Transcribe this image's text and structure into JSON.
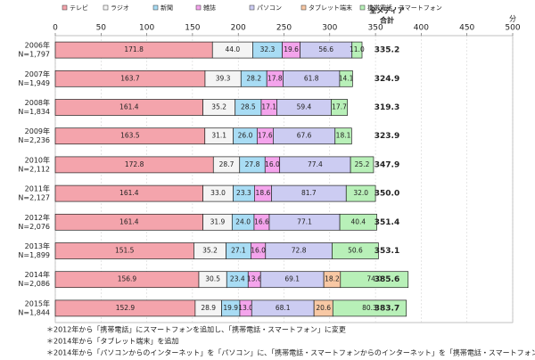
{
  "chart_data": {
    "type": "stacked_bar_horizontal",
    "categories": [
      "2006年",
      "2007年",
      "2008年",
      "2009年",
      "2010年",
      "2011年",
      "2012年",
      "2013年",
      "2014年",
      "2015年"
    ],
    "sample_sizes": [
      "N=1,797",
      "N=1,949",
      "N=1,834",
      "N=2,236",
      "N=2,112",
      "N=2,127",
      "N=2,076",
      "N=1,899",
      "N=2,086",
      "N=1,844"
    ],
    "series": [
      {
        "name": "テレビ",
        "color": "#f4a4ac",
        "values": [
          171.8,
          163.7,
          161.4,
          163.5,
          172.8,
          161.4,
          161.4,
          151.5,
          156.9,
          152.9
        ],
        "value_labels": [
          "171.8",
          "163.7",
          "161.4",
          "163.5",
          "172.8",
          "161.4",
          "161.4",
          "151.5",
          "156.9",
          "152.9"
        ]
      },
      {
        "name": "ラジオ",
        "color": "#f4f4f4",
        "values": [
          44.0,
          39.3,
          35.2,
          31.1,
          28.7,
          33.0,
          31.9,
          35.2,
          30.5,
          28.9
        ],
        "value_labels": [
          "44.0",
          "39.3",
          "35.2",
          "31.1",
          "28.7",
          "33.0",
          "31.9",
          "35.2",
          "30.5",
          "28.9"
        ]
      },
      {
        "name": "新聞",
        "color": "#a8dcf4",
        "values": [
          32.3,
          28.2,
          28.5,
          26.0,
          27.8,
          23.3,
          24.0,
          27.1,
          23.4,
          19.9
        ],
        "value_labels": [
          "32.3",
          "28.2",
          "28.5",
          "26.0",
          "27.8",
          "23.3",
          "24.0",
          "27.1",
          "23.4",
          "19.9"
        ]
      },
      {
        "name": "雑誌",
        "color": "#f4a4ec",
        "values": [
          19.6,
          17.8,
          17.1,
          17.6,
          16.0,
          18.6,
          16.6,
          16.0,
          13.6,
          13.0
        ],
        "value_labels": [
          "19.6",
          "17.8",
          "17.1",
          "17.6",
          "16.0",
          "18.6",
          "16.6",
          "16.0",
          "13.6",
          "13.0"
        ]
      },
      {
        "name": "パソコン",
        "color": "#ccccf2",
        "values": [
          56.6,
          61.8,
          59.4,
          67.6,
          77.4,
          81.7,
          77.1,
          72.8,
          69.1,
          68.1
        ],
        "value_labels": [
          "56.6",
          "61.8",
          "59.4",
          "67.6",
          "77.4",
          "81.7",
          "77.1",
          "72.8",
          "69.1",
          "68.1"
        ]
      },
      {
        "name": "タブレット端末",
        "color": "#f8c8a4",
        "values": [
          null,
          null,
          null,
          null,
          null,
          null,
          null,
          null,
          18.2,
          20.6
        ],
        "value_labels": [
          null,
          null,
          null,
          null,
          null,
          null,
          null,
          null,
          "18.2",
          "20.6"
        ]
      },
      {
        "name": "携帯電話・スマートフォン",
        "color": "#b8f0b8",
        "values": [
          11.0,
          14.1,
          17.7,
          18.1,
          25.2,
          32.0,
          40.4,
          50.6,
          74.0,
          80.3
        ],
        "value_labels": [
          "11.0",
          "14.1",
          "17.7",
          "18.1",
          "25.2",
          "32.0",
          "40.4",
          "50.6",
          "74.0",
          "80.3"
        ]
      }
    ],
    "totals_title": [
      "全メディア",
      "合計"
    ],
    "totals": [
      335.2,
      324.9,
      319.3,
      323.9,
      347.9,
      350.0,
      351.4,
      353.1,
      385.6,
      383.7
    ],
    "totals_labels": [
      "335.2",
      "324.9",
      "319.3",
      "323.9",
      "347.9",
      "350.0",
      "351.4",
      "353.1",
      "385.6",
      "383.7"
    ],
    "unit": "分",
    "xlim": [
      0,
      500
    ],
    "xticks": [
      0,
      50,
      100,
      150,
      200,
      250,
      300,
      350,
      400,
      450,
      500
    ],
    "notes": [
      "＊2012年から「携帯電話」にスマートフォンを追加し、「携帯電話・スマートフォン」に変更",
      "＊2014年から「タブレット端末」を追加",
      "＊2014年から「パソコンからのインターネット」を「パソコン」に、「携帯電話・スマートフォンからのインターネット」を「携帯電話・スマートフォン」に変更"
    ]
  }
}
